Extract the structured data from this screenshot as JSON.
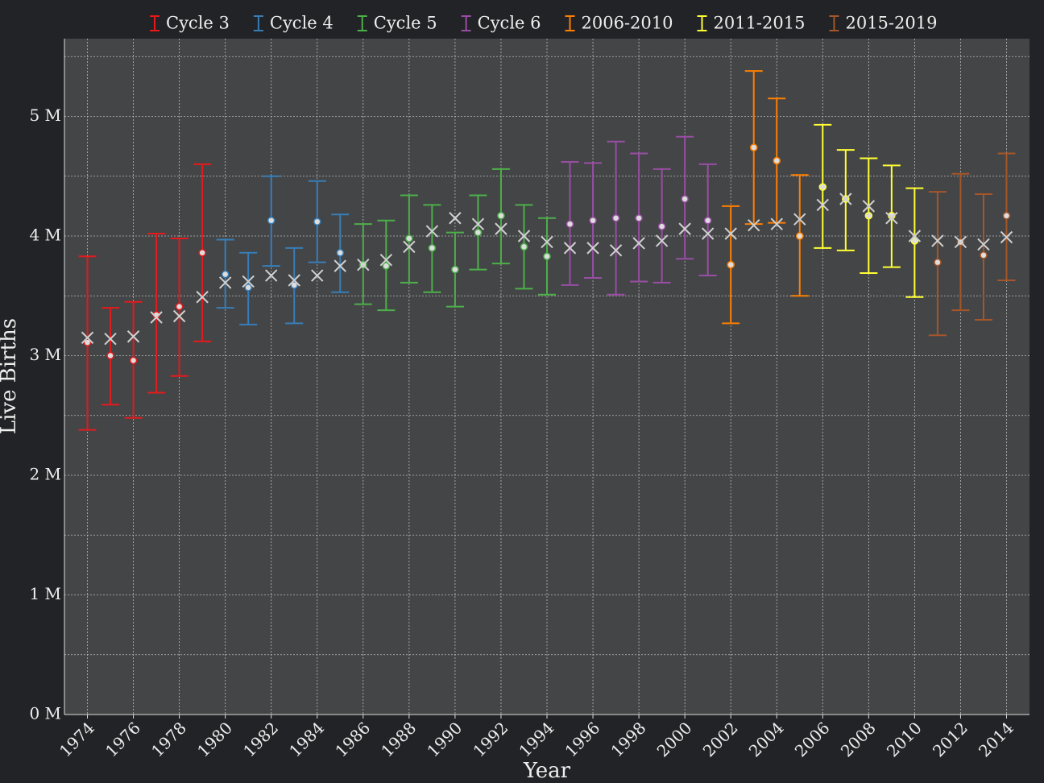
{
  "chart_data": {
    "type": "errorbar",
    "xlabel": "Year",
    "ylabel": "Live Births",
    "xlim": [
      1973,
      2015
    ],
    "ylim": [
      0,
      5650000
    ],
    "xticks": [
      1974,
      1976,
      1978,
      1980,
      1982,
      1984,
      1986,
      1988,
      1990,
      1992,
      1994,
      1996,
      1998,
      2000,
      2002,
      2004,
      2006,
      2008,
      2010,
      2012,
      2014
    ],
    "yticks": [
      {
        "value": 0,
        "label": "0 M"
      },
      {
        "value": 1000000,
        "label": "1 M"
      },
      {
        "value": 2000000,
        "label": "2 M"
      },
      {
        "value": 3000000,
        "label": "3 M"
      },
      {
        "value": 4000000,
        "label": "4 M"
      },
      {
        "value": 5000000,
        "label": "5 M"
      }
    ],
    "yminor": [
      500000,
      1500000,
      2500000,
      3500000,
      4500000,
      5500000
    ],
    "grid": true,
    "series": [
      {
        "name": "Cycle 3",
        "color": "#e41a1c",
        "x": [
          1974,
          1975,
          1976,
          1977,
          1978,
          1979
        ],
        "values": [
          3110000,
          3000000,
          2960000,
          3340000,
          3410000,
          3860000
        ],
        "lower": [
          2380000,
          2590000,
          2480000,
          2690000,
          2830000,
          3120000
        ],
        "upper": [
          3830000,
          3400000,
          3450000,
          4020000,
          3980000,
          4600000
        ]
      },
      {
        "name": "Cycle 4",
        "color": "#377eb8",
        "x": [
          1980,
          1981,
          1982,
          1983,
          1984,
          1985
        ],
        "values": [
          3680000,
          3570000,
          4130000,
          3590000,
          4120000,
          3860000
        ],
        "lower": [
          3400000,
          3260000,
          3750000,
          3270000,
          3780000,
          3530000
        ],
        "upper": [
          3970000,
          3860000,
          4500000,
          3900000,
          4460000,
          4180000
        ]
      },
      {
        "name": "Cycle 5",
        "color": "#4daf4a",
        "x": [
          1986,
          1987,
          1988,
          1989,
          1990,
          1991,
          1992,
          1993,
          1994
        ],
        "values": [
          3760000,
          3750000,
          3980000,
          3900000,
          3720000,
          4030000,
          4170000,
          3910000,
          3830000
        ],
        "lower": [
          3430000,
          3380000,
          3610000,
          3530000,
          3410000,
          3720000,
          3770000,
          3560000,
          3510000
        ],
        "upper": [
          4100000,
          4130000,
          4340000,
          4260000,
          4030000,
          4340000,
          4560000,
          4260000,
          4150000
        ]
      },
      {
        "name": "Cycle 6",
        "color": "#984ea3",
        "x": [
          1995,
          1996,
          1997,
          1998,
          1999,
          2000,
          2001
        ],
        "values": [
          4100000,
          4130000,
          4150000,
          4150000,
          4080000,
          4310000,
          4130000
        ],
        "lower": [
          3590000,
          3650000,
          3510000,
          3620000,
          3610000,
          3810000,
          3670000
        ],
        "upper": [
          4620000,
          4610000,
          4790000,
          4690000,
          4560000,
          4830000,
          4600000
        ]
      },
      {
        "name": "2006-2010",
        "color": "#ff7f00",
        "x": [
          2002,
          2003,
          2004,
          2005
        ],
        "values": [
          3760000,
          4740000,
          4630000,
          4000000
        ],
        "lower": [
          3270000,
          4100000,
          4110000,
          3500000
        ],
        "upper": [
          4250000,
          5380000,
          5150000,
          4510000
        ]
      },
      {
        "name": "2011-2015",
        "color": "#ffff33",
        "x": [
          2006,
          2007,
          2008,
          2009,
          2010
        ],
        "values": [
          4410000,
          4310000,
          4170000,
          4170000,
          3960000
        ],
        "lower": [
          3900000,
          3880000,
          3690000,
          3740000,
          3490000
        ],
        "upper": [
          4930000,
          4720000,
          4650000,
          4590000,
          4400000
        ]
      },
      {
        "name": "2015-2019",
        "color": "#a65628",
        "x": [
          2011,
          2012,
          2013,
          2014
        ],
        "values": [
          3780000,
          3950000,
          3840000,
          4170000
        ],
        "lower": [
          3170000,
          3380000,
          3300000,
          3630000
        ],
        "upper": [
          4370000,
          4520000,
          4350000,
          4690000
        ]
      }
    ],
    "actual": {
      "color": "#d0d0d0",
      "x": [
        1974,
        1975,
        1976,
        1977,
        1978,
        1979,
        1980,
        1981,
        1982,
        1983,
        1984,
        1985,
        1986,
        1987,
        1988,
        1989,
        1990,
        1991,
        1992,
        1993,
        1994,
        1995,
        1996,
        1997,
        1998,
        1999,
        2000,
        2001,
        2002,
        2003,
        2004,
        2005,
        2006,
        2007,
        2008,
        2009,
        2010,
        2011,
        2012,
        2013,
        2014
      ],
      "values": [
        3150000,
        3140000,
        3160000,
        3320000,
        3330000,
        3490000,
        3610000,
        3620000,
        3670000,
        3630000,
        3670000,
        3750000,
        3760000,
        3800000,
        3910000,
        4040000,
        4150000,
        4100000,
        4060000,
        4000000,
        3950000,
        3900000,
        3900000,
        3880000,
        3940000,
        3960000,
        4060000,
        4020000,
        4020000,
        4090000,
        4100000,
        4140000,
        4260000,
        4310000,
        4250000,
        4150000,
        4000000,
        3960000,
        3950000,
        3930000,
        3990000
      ]
    }
  }
}
